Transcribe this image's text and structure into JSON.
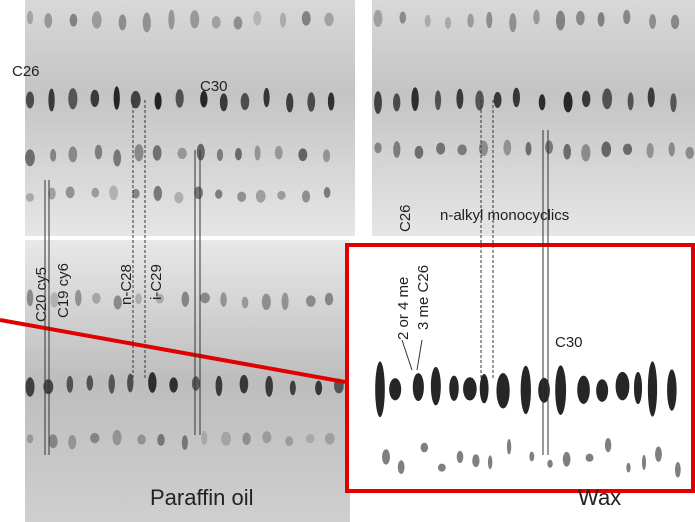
{
  "labels": {
    "top_left_c26": "C26",
    "top_left_c30": "C30",
    "c20_cy5": "C20 cy5",
    "c19_cy6": "C19 cy6",
    "n_c28": "n-C28",
    "i_c29": "i-C29",
    "paraffin_oil": "Paraffin oil",
    "top_right_c26": "C26",
    "n_alkyl_monocyclics": "n-alkyl monocyclics",
    "two_or_four_me": "2 or 4 me",
    "three_me_c26": "3 me C26",
    "inset_c30": "C30",
    "wax": "Wax"
  }
}
